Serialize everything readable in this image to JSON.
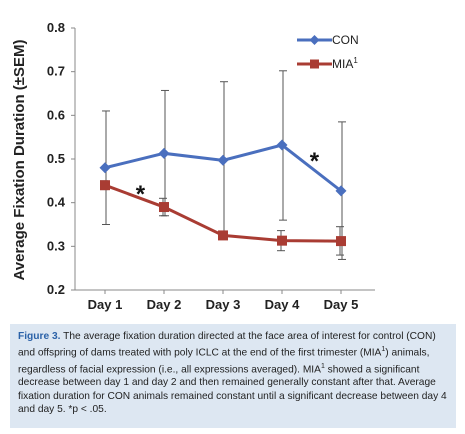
{
  "chart_data": {
    "type": "line",
    "title": "",
    "ylabel": "Average Fixation Duration (±SEM)",
    "xlabel": "",
    "categories": [
      "Day 1",
      "Day 2",
      "Day 3",
      "Day 4",
      "Day 5"
    ],
    "ylim": [
      0.2,
      0.8
    ],
    "yticks": [
      "0.2",
      "0.3",
      "0.4",
      "0.5",
      "0.6",
      "0.7",
      "0.8"
    ],
    "grid": false,
    "legend": "top-right",
    "series": [
      {
        "name": "CON",
        "color": "#4a6fbe",
        "marker": "diamond",
        "values": [
          0.48,
          0.513,
          0.497,
          0.532,
          0.427
        ],
        "err_low": [
          0.35,
          0.37,
          0.33,
          0.36,
          0.27
        ],
        "err_high": [
          0.61,
          0.657,
          0.677,
          0.702,
          0.585
        ]
      },
      {
        "name": "MIA",
        "name_sup": "1",
        "color": "#a93c33",
        "marker": "square",
        "values": [
          0.44,
          0.39,
          0.325,
          0.313,
          0.312
        ],
        "err_low": [
          0.43,
          0.37,
          0.316,
          0.29,
          0.28
        ],
        "err_high": [
          0.45,
          0.41,
          0.334,
          0.336,
          0.345
        ]
      }
    ],
    "annotations": [
      {
        "text": "*",
        "x": 1.6,
        "y": 0.425
      },
      {
        "text": "*",
        "x": 4.55,
        "y": 0.5
      }
    ]
  },
  "caption": {
    "label": "Figure 3.",
    "text_part1": " The average fixation duration directed at the face area of interest for control (CON) and offspring of dams treated with poly ICLC at the end of the first trimester (MIA",
    "sup1": "1",
    "text_part2": ") animals, regardless of facial expression (i.e., all expressions averaged). MIA",
    "sup2": "1",
    "text_part3": " showed a significant decrease between day 1 and day 2 and then remained generally constant after that. Average fixation duration for CON animals remained constant until a significant decrease between day 4 and day 5. *p < .05."
  }
}
